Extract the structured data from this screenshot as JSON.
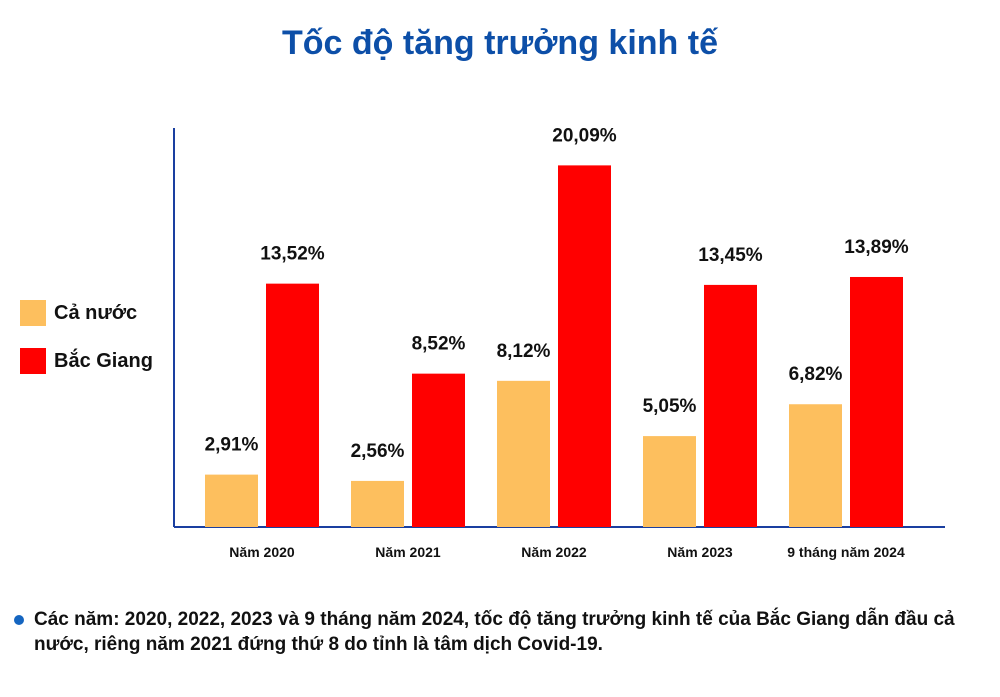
{
  "title": "Tốc độ tăng trưởng kinh tế",
  "colors": {
    "title": "#0d4fa8",
    "axis": "#1a3fa0",
    "ca_nuoc": "#fdbf5e",
    "bac_giang": "#ff0000",
    "bullet": "#1565c0"
  },
  "legend": [
    {
      "label": "Cả nước",
      "series": "ca_nuoc"
    },
    {
      "label": "Bắc Giang",
      "series": "bac_giang"
    }
  ],
  "chart_data": {
    "type": "bar",
    "categories": [
      "Năm 2020",
      "Năm 2021",
      "Năm 2022",
      "Năm 2023",
      "9 tháng năm 2024"
    ],
    "series": [
      {
        "name": "Cả nước",
        "key": "ca_nuoc",
        "values": [
          2.91,
          2.56,
          8.12,
          5.05,
          6.82
        ],
        "labels": [
          "2,91%",
          "2,56%",
          "8,12%",
          "5,05%",
          "6,82%"
        ]
      },
      {
        "name": "Bắc Giang",
        "key": "bac_giang",
        "values": [
          13.52,
          8.52,
          20.09,
          13.45,
          13.89
        ],
        "labels": [
          "13,52%",
          "8,52%",
          "20,09%",
          "13,45%",
          "13,89%"
        ]
      }
    ],
    "ylim": [
      0,
      22
    ],
    "grid": false,
    "legend_position": "left"
  },
  "note": "Các năm: 2020, 2022, 2023 và 9 tháng năm 2024, tốc độ tăng trưởng kinh tế của Bắc Giang dẫn đầu cả nước, riêng năm 2021 đứng thứ 8 do tỉnh là tâm dịch Covid-19."
}
